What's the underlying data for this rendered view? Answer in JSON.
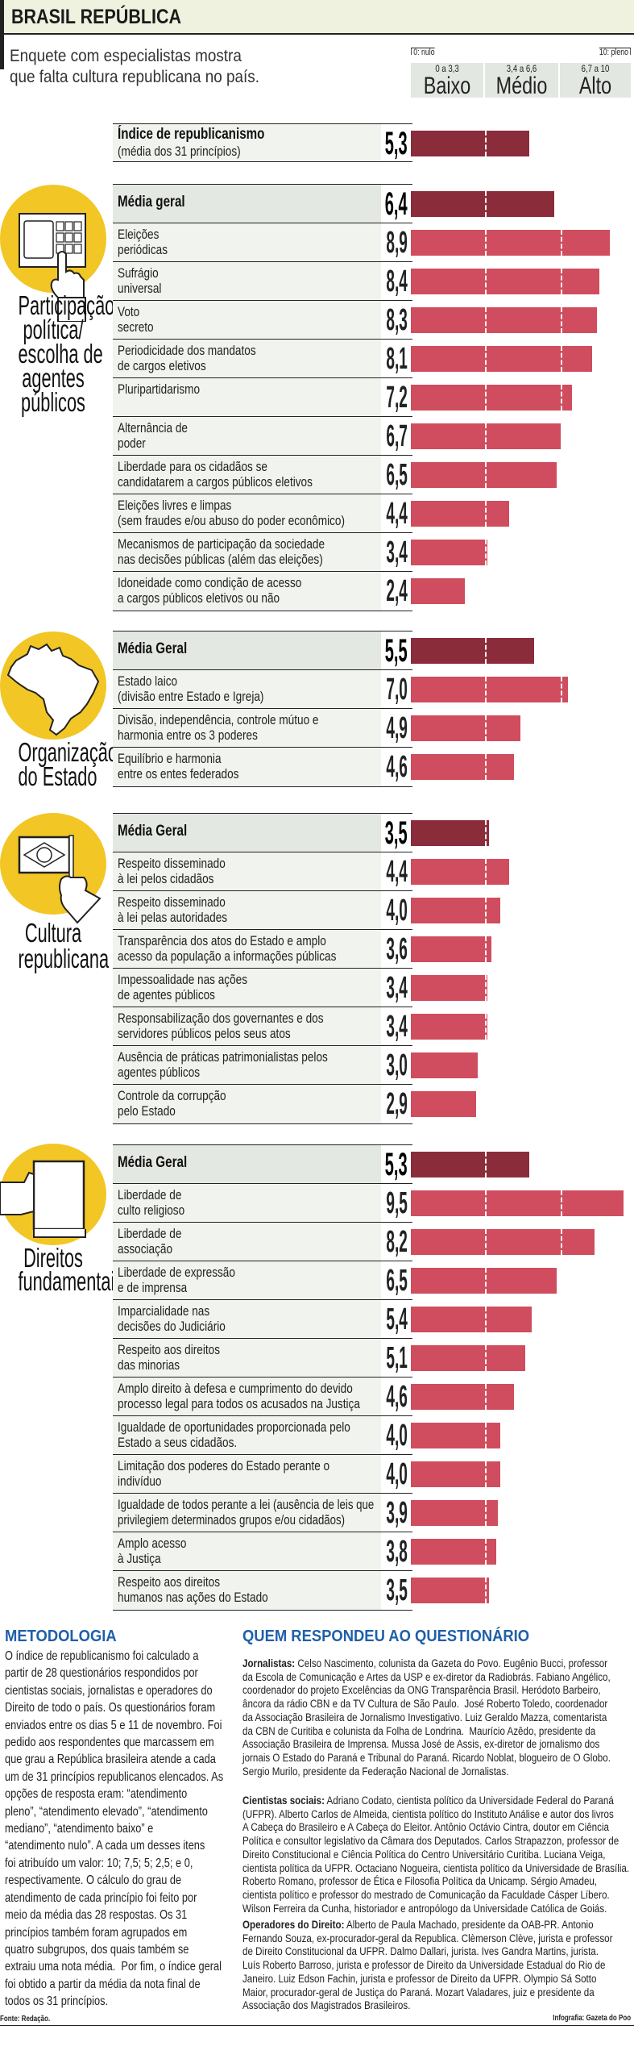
{
  "header": {
    "title": "BRASIL REPÚBLICA",
    "subtitle_lines": [
      "Enquete com especialistas mostra",
      "que falta cultura republicana no país."
    ]
  },
  "legend": {
    "min_label": "0: nulo",
    "max_label": "10: pleno",
    "bands": [
      {
        "range": "0 a 3,3",
        "label": "Baixo"
      },
      {
        "range": "3,4 a 6,6",
        "label": "Médio"
      },
      {
        "range": "6,7 a 10",
        "label": "Alto"
      }
    ]
  },
  "colors": {
    "mean_bar": "#8b2c3b",
    "item_bar": "#cf4d5e",
    "icon_circle": "#f2c624",
    "heading_blue": "#1f5fa8",
    "header_band": "#eef2df"
  },
  "chart_data": {
    "type": "bar",
    "orientation": "horizontal",
    "xlim": [
      0,
      10
    ],
    "thresholds": [
      3.3,
      6.7
    ],
    "index": {
      "title": "Índice de republicanismo",
      "subtitle": "(média dos 31 princípios)",
      "value": 5.3
    },
    "sections": [
      {
        "title": "Participação\npolítica/\nescolha de\nagentes\npúblicos",
        "icon": "voting-machine-icon",
        "mean_label": "Média geral",
        "mean_value": 6.4,
        "items": [
          {
            "label": "Eleições\nperiódicas",
            "value": 8.9
          },
          {
            "label": "Sufrágio\nuniversal",
            "value": 8.4
          },
          {
            "label": "Voto\nsecreto",
            "value": 8.3
          },
          {
            "label": "Periodicidade dos mandatos\nde cargos eletivos",
            "value": 8.1
          },
          {
            "label": "Pluripartidarismo",
            "value": 7.2
          },
          {
            "label": "Alternância de\npoder",
            "value": 6.7
          },
          {
            "label": "Liberdade para os cidadãos se\ncandidatarem a cargos públicos eletivos",
            "value": 6.5
          },
          {
            "label": "Eleições livres e limpas\n(sem fraudes e/ou abuso do poder econômico)",
            "value": 4.4
          },
          {
            "label": "Mecanismos de participação da sociedade\nnas decisões públicas (além das eleições)",
            "value": 3.4
          },
          {
            "label": "Idoneidade como condição de acesso\na cargos públicos eletivos ou não",
            "value": 2.4
          }
        ]
      },
      {
        "title": "Organização\ndo Estado",
        "icon": "brazil-map-icon",
        "mean_label": "Média Geral",
        "mean_value": 5.5,
        "items": [
          {
            "label": "Estado laico\n(divisão entre Estado e Igreja)",
            "value": 7.0
          },
          {
            "label": "Divisão, independência, controle mútuo e\nharmonia entre os 3 poderes",
            "value": 4.9
          },
          {
            "label": "Equilíbrio e harmonia\nentre os entes federados",
            "value": 4.6
          }
        ]
      },
      {
        "title": "Cultura\nrepublicana",
        "icon": "hand-holding-flag-icon",
        "mean_label": "Média Geral",
        "mean_value": 3.5,
        "items": [
          {
            "label": "Respeito disseminado\nà lei pelos cidadãos",
            "value": 4.4
          },
          {
            "label": "Respeito disseminado\nà lei pelas autoridades",
            "value": 4.0
          },
          {
            "label": "Transparência dos atos do Estado e amplo\nacesso da população a informações públicas",
            "value": 3.6
          },
          {
            "label": "Impessoalidade nas ações\nde agentes públicos",
            "value": 3.4
          },
          {
            "label": "Responsabilização dos governantes e dos\nservidores públicos pelos seus atos",
            "value": 3.4
          },
          {
            "label": "Ausência de práticas patrimonialistas pelos\nagentes públicos",
            "value": 3.0
          },
          {
            "label": "Controle da corrupção\npelo Estado",
            "value": 2.9
          }
        ]
      },
      {
        "title": "Direitos\nfundamentais",
        "icon": "hand-holding-book-icon",
        "mean_label": "Média Geral",
        "mean_value": 5.3,
        "items": [
          {
            "label": "Liberdade de\nculto religioso",
            "value": 9.5
          },
          {
            "label": "Liberdade de\nassociação",
            "value": 8.2
          },
          {
            "label": "Liberdade de expressão\ne de imprensa",
            "value": 6.5
          },
          {
            "label": "Imparcialidade nas\ndecisões do Judiciário",
            "value": 5.4
          },
          {
            "label": "Respeito aos direitos\ndas minorias",
            "value": 5.1
          },
          {
            "label": "Amplo direito à defesa e cumprimento do devido\nprocesso legal para todos os acusados na Justiça",
            "value": 4.6
          },
          {
            "label": "Igualdade de oportunidades proporcionada pelo\nEstado a seus cidadãos.",
            "value": 4.0
          },
          {
            "label": "Limitação dos poderes do Estado perante o\nindivíduo",
            "value": 4.0
          },
          {
            "label": "Igualdade de todos perante a lei (ausência de leis que\nprivilegiem determinados grupos e/ou cidadãos)",
            "value": 3.9
          },
          {
            "label": "Amplo acesso\nà Justiça",
            "value": 3.8
          },
          {
            "label": "Respeito aos direitos\nhumanos nas ações do Estado",
            "value": 3.5
          }
        ]
      }
    ]
  },
  "methodology": {
    "heading": "METODOLOGIA",
    "body": "O índice de republicanismo foi calculado a\npartir de 28 questionários respondidos por\ncientistas sociais, jornalistas e operadores do\nDireito de todo o país. Os questionários foram\nenviados entre os dias 5 e 11 de novembro. Foi\npedido aos respondentes que marcassem em\nque grau a República brasileira atende a cada\num de 31 princípios republicanos elencados. As\nopções de resposta eram: “atendimento\npleno”, “atendimento elevado”, “atendimento\nmediano”, “atendimento baixo” e\n“atendimento nulo”. A cada um desses itens\nfoi atribuído um valor: 10; 7,5; 5; 2,5; e 0,\nrespectivamente. O cálculo do grau de\natendimento de cada princípio foi feito por\nmeio da média das 28 respostas. Os 31\nprincípios também foram agrupados em\nquatro subgrupos, dos quais também se\nextraiu uma nota média.  Por fim, o índice geral\nfoi obtido a partir da média da nota final de\ntodos os 31 princípios.",
    "source": "Fonte: Redação."
  },
  "respondents": {
    "heading": "QUEM RESPONDEU AO QUESTIONÁRIO",
    "groups": [
      {
        "lead": "Jornalistas:",
        "text": " Celso Nascimento, colunista da Gazeta do Povo. Eugênio Bucci, professor\nda Escola de Comunicação e Artes da USP e ex-diretor da Radiobrás. Fabiano Angélico,\ncoordenador do projeto Excelências da ONG Transparência Brasil. Heródoto Barbeiro,\nâncora da rádio CBN e da TV Cultura de São Paulo.  José Roberto Toledo, coordenador\nda Associação Brasileira de Jornalismo Investigativo. Luiz Geraldo Mazza, comentarista\nda CBN de Curitiba e colunista da Folha de Londrina.  Maurício Azêdo, presidente da\nAssociação Brasileira de Imprensa. Mussa José de Assis, ex-diretor de jornalismo dos\njornais O Estado do Paraná e Tribunal do Paraná. Ricardo Noblat, blogueiro de O Globo.\nSergio Murilo, presidente da Federação Nacional de Jornalistas."
      },
      {
        "lead": "Cientistas sociais:",
        "text": " Adriano Codato, cientista político da Universidade Federal do Paraná\n(UFPR). Alberto Carlos de Almeida, cientista político do Instituto Análise e autor dos livros\nA Cabeça do Brasileiro e A Cabeça do Eleitor. Antônio Octávio Cintra, doutor em Ciência\nPolítica e consultor legislativo da Câmara dos Deputados. Carlos Strapazzon, professor de\nDireito Constitucional e Ciência Política do Centro Universitário Curitiba. Luciana Veiga,\ncientista política da UFPR. Octaciano Nogueira, cientista político da Universidade de Brasília.\nRoberto Romano, professor de Ética e Filosofia Política da Unicamp. Sérgio Amadeu,\ncientista político e professor do mestrado de Comunicação da Faculdade Cásper Líbero.\nWilson Ferreira da Cunha, historiador e antropólogo da Universidade Católica de Goiás."
      },
      {
        "lead": "Operadores do Direito:",
        "text": " Alberto de Paula Machado, presidente da OAB-PR. Antonio\nFernando Souza, ex-procurador-geral da Republica. Clèmerson Clève, jurista e professor\nde Direito Constitucional da UFPR. Dalmo Dallari, jurista. Ives Gandra Martins, jurista.\nLuís Roberto Barroso, jurista e professor de Direito da Universidade Estadual do Rio de\nJaneiro. Luiz Edson Fachin, jurista e professor de Direito da UFPR. Olympio Sá Sotto\nMaior, procurador-geral de Justiça do Paraná. Mozart Valadares, juiz e presidente da\nAssociação dos Magistrados Brasileiros."
      }
    ],
    "credit": "Infografia: Gazeta do Poo"
  }
}
